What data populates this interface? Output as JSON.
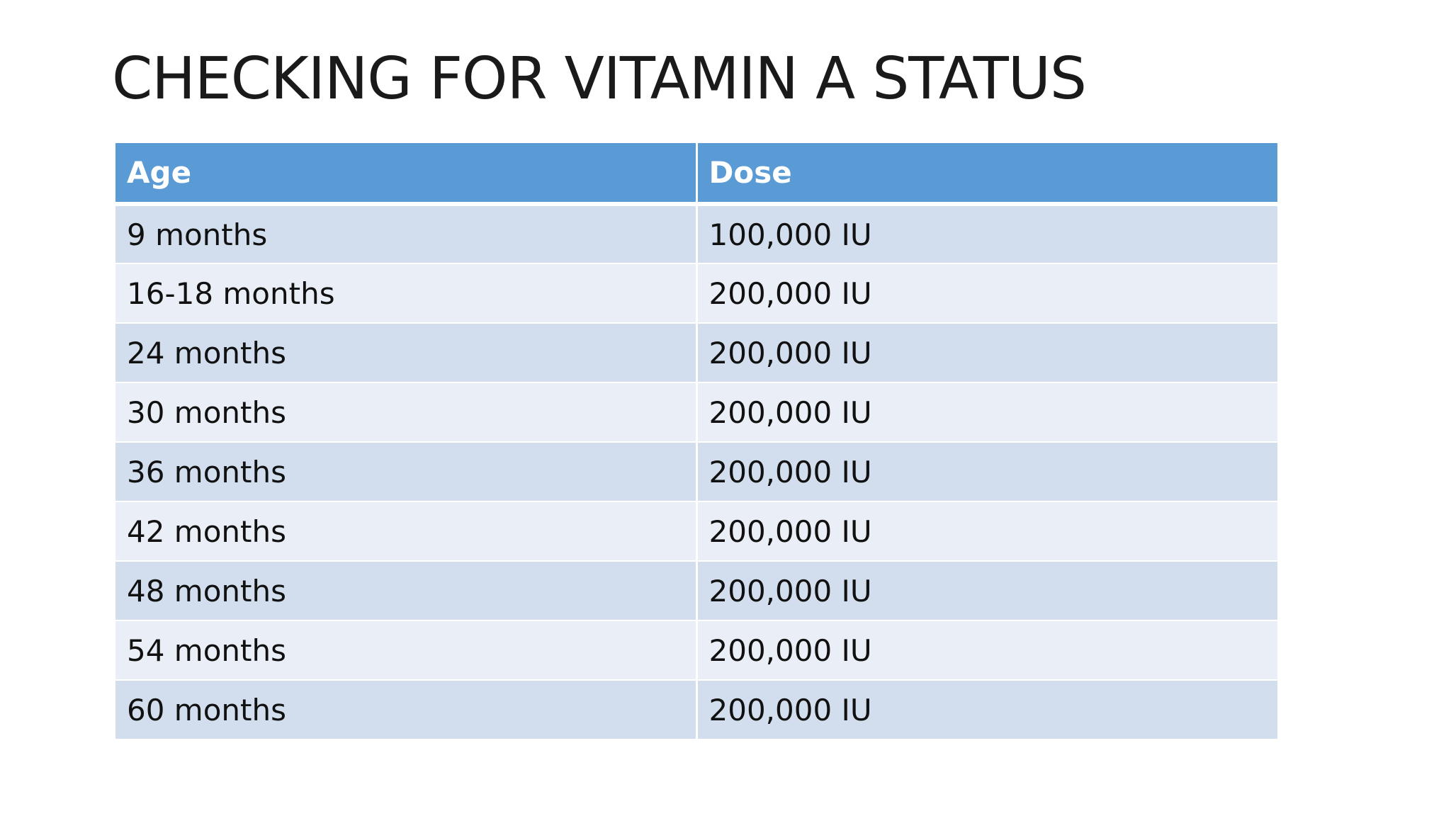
{
  "title": "CHECKING FOR VITAMIN A STATUS",
  "table": {
    "headers": [
      "Age",
      "Dose"
    ],
    "rows": [
      [
        "9 months",
        "100,000 IU"
      ],
      [
        "16-18 months",
        "200,000 IU"
      ],
      [
        "24 months",
        "200,000 IU"
      ],
      [
        "30 months",
        "200,000 IU"
      ],
      [
        "36 months",
        "200,000 IU"
      ],
      [
        "42 months",
        "200,000 IU"
      ],
      [
        "48 months",
        "200,000 IU"
      ],
      [
        "54 months",
        "200,000 IU"
      ],
      [
        "60 months",
        "200,000 IU"
      ]
    ]
  },
  "colors": {
    "header_bg": "#5b9bd5",
    "row_band_dark": "#d2deee",
    "row_band_light": "#eaeff7"
  }
}
